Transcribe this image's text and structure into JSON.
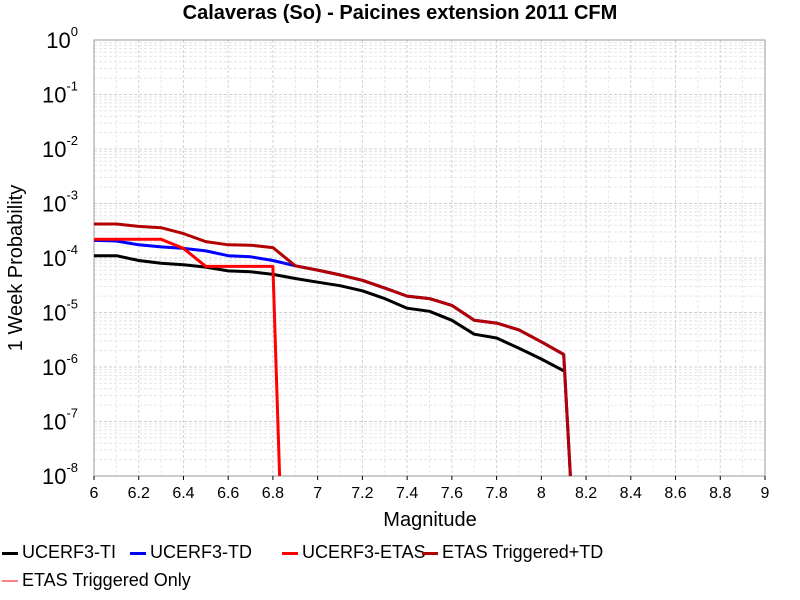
{
  "chart_data": {
    "type": "line",
    "title": "Calaveras (So) - Paicines extension 2011 CFM",
    "xlabel": "Magnitude",
    "ylabel": "1 Week Probability",
    "xlim": [
      6,
      9
    ],
    "ylim": [
      1e-08,
      1
    ],
    "yscale": "log",
    "grid": true,
    "legend_position": "bottom",
    "x_ticks": [
      "6",
      "6.2",
      "6.4",
      "6.6",
      "6.8",
      "7",
      "7.2",
      "7.4",
      "7.6",
      "7.8",
      "8",
      "8.2",
      "8.4",
      "8.6",
      "8.8",
      "9"
    ],
    "y_ticks": [
      {
        "base": "10",
        "exp": "0"
      },
      {
        "base": "10",
        "exp": "-1"
      },
      {
        "base": "10",
        "exp": "-2"
      },
      {
        "base": "10",
        "exp": "-3"
      },
      {
        "base": "10",
        "exp": "-4"
      },
      {
        "base": "10",
        "exp": "-5"
      },
      {
        "base": "10",
        "exp": "-6"
      },
      {
        "base": "10",
        "exp": "-7"
      },
      {
        "base": "10",
        "exp": "-8"
      }
    ],
    "series": [
      {
        "name": "UCERF3-TI",
        "color": "#000000",
        "x": [
          6.0,
          6.1,
          6.2,
          6.3,
          6.4,
          6.5,
          6.6,
          6.7,
          6.8,
          6.9,
          7.0,
          7.1,
          7.2,
          7.3,
          7.4,
          7.5,
          7.6,
          7.7,
          7.8,
          7.9,
          8.0,
          8.1
        ],
        "y": [
          0.00011,
          0.00011,
          9e-05,
          8e-05,
          7.5e-05,
          6.8e-05,
          5.8e-05,
          5.6e-05,
          5e-05,
          4.2e-05,
          3.6e-05,
          3.1e-05,
          2.5e-05,
          1.8e-05,
          1.2e-05,
          1.05e-05,
          7.2e-06,
          4e-06,
          3.4e-06,
          2.2e-06,
          1.4e-06,
          8.5e-07
        ]
      },
      {
        "name": "UCERF3-TD",
        "color": "#0000ff",
        "x": [
          6.0,
          6.1,
          6.2,
          6.3,
          6.4,
          6.5,
          6.6,
          6.7,
          6.8,
          6.9,
          7.0,
          7.1,
          7.2,
          7.3,
          7.4,
          7.5,
          7.6,
          7.7,
          7.8,
          7.9,
          8.0,
          8.1,
          8.13
        ],
        "y": [
          0.00021,
          0.000205,
          0.000175,
          0.00016,
          0.00015,
          0.000135,
          0.00011,
          0.000105,
          9e-05,
          7.2e-05,
          6e-05,
          4.9e-05,
          3.9e-05,
          2.8e-05,
          2e-05,
          1.8e-05,
          1.35e-05,
          7.2e-06,
          6.4e-06,
          4.8e-06,
          2.9e-06,
          1.7e-06,
          1e-08
        ]
      },
      {
        "name": "UCERF3-ETAS",
        "color": "#ff0000",
        "x": [
          6.0,
          6.1,
          6.2,
          6.3,
          6.4,
          6.5,
          6.6,
          6.7,
          6.8,
          6.83
        ],
        "y": [
          0.00022,
          0.00022,
          0.00022,
          0.00022,
          0.00015,
          7e-05,
          7e-05,
          7e-05,
          7e-05,
          1e-08
        ]
      },
      {
        "name": "ETAS Triggered+TD",
        "color": "#b30000",
        "x": [
          6.0,
          6.1,
          6.2,
          6.3,
          6.4,
          6.5,
          6.6,
          6.7,
          6.8,
          6.9,
          7.0,
          7.1,
          7.2,
          7.3,
          7.4,
          7.5,
          7.6,
          7.7,
          7.8,
          7.9,
          8.0,
          8.1,
          8.13
        ],
        "y": [
          0.00042,
          0.00042,
          0.00038,
          0.00036,
          0.00028,
          0.0002,
          0.000175,
          0.000172,
          0.000155,
          7.2e-05,
          6e-05,
          4.9e-05,
          3.9e-05,
          2.8e-05,
          2e-05,
          1.8e-05,
          1.35e-05,
          7.2e-06,
          6.4e-06,
          4.8e-06,
          2.9e-06,
          1.7e-06,
          1e-08
        ]
      },
      {
        "name": "ETAS Triggered Only",
        "color": "#ff8080",
        "x": [],
        "y": []
      }
    ]
  }
}
